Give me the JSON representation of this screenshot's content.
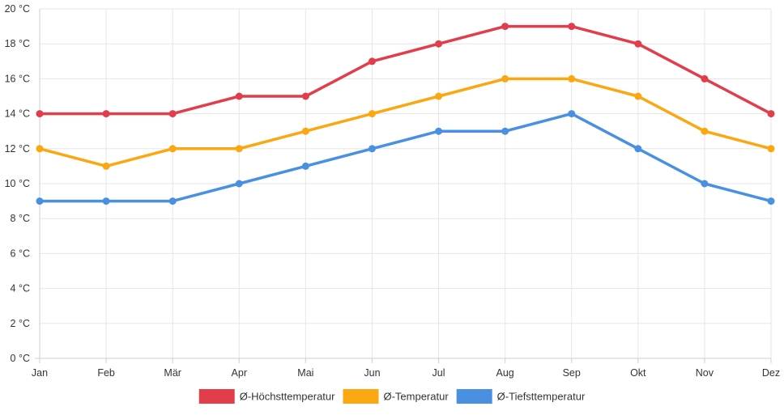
{
  "chart_data": {
    "type": "line",
    "categories": [
      "Jan",
      "Feb",
      "Mär",
      "Apr",
      "Mai",
      "Jun",
      "Jul",
      "Aug",
      "Sep",
      "Okt",
      "Nov",
      "Dez"
    ],
    "series": [
      {
        "name": "Ø-Höchsttemperatur",
        "color": "#e23d4b",
        "values": [
          14,
          14,
          14,
          15,
          15,
          17,
          18,
          19,
          19,
          18,
          16,
          14
        ]
      },
      {
        "name": "Ø-Temperatur",
        "color": "#fba712",
        "values": [
          12,
          11,
          12,
          12,
          13,
          14,
          15,
          16,
          16,
          15,
          13,
          12
        ]
      },
      {
        "name": "Ø-Tiefsttemperatur",
        "color": "#4a90e2",
        "values": [
          9,
          9,
          9,
          10,
          11,
          12,
          13,
          13,
          14,
          12,
          10,
          9
        ]
      }
    ],
    "y_ticks": [
      "0 °C",
      "2 °C",
      "4 °C",
      "6 °C",
      "8 °C",
      "10 °C",
      "12 °C",
      "14 °C",
      "16 °C",
      "18 °C",
      "20 °C"
    ],
    "ylim": [
      0,
      20
    ],
    "grid": true,
    "legend_position": "bottom-center"
  }
}
